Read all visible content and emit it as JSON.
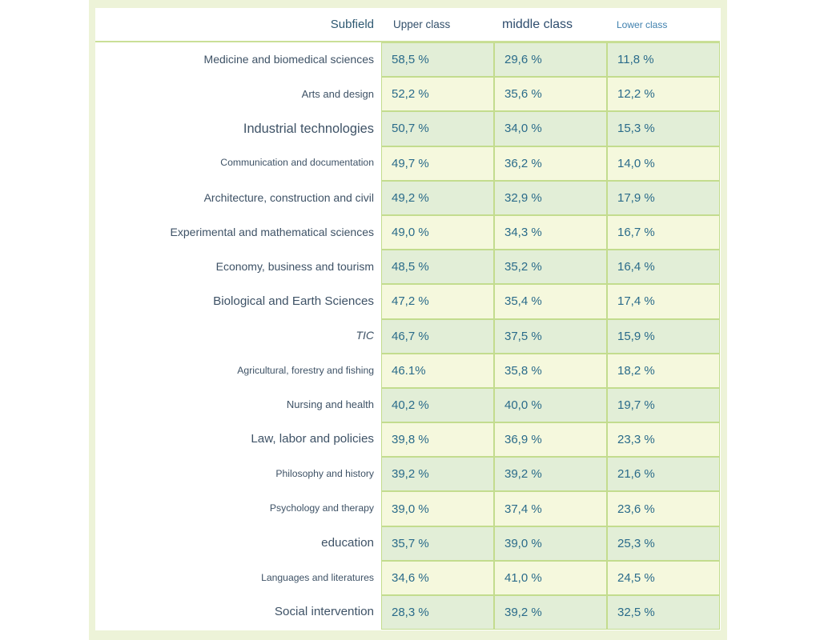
{
  "colors": {
    "band": "#edf3d8",
    "panel": "#ffffff",
    "row_green": "#e2eed7",
    "row_cream": "#f5f8dd",
    "grid_border": "#c3dc8e",
    "header_rule": "#cadf97",
    "label_text": "#3e5266",
    "value_text": "#2a6b8a",
    "header_subfield": "#2d5871",
    "header_upper": "#33506b",
    "header_middle": "#2e4d6e",
    "header_lower": "#3f80ae"
  },
  "chart_data": {
    "type": "table",
    "columns": [
      "Subfield",
      "Upper class",
      "middle class",
      "Lower class"
    ],
    "rows": [
      {
        "subfield": "Medicine and biomedical sciences",
        "upper": "58,5 %",
        "middle": "29,6 %",
        "lower": "11,8 %",
        "size": "md",
        "italic": false
      },
      {
        "subfield": "Arts and design",
        "upper": "52,2 %",
        "middle": "35,6 %",
        "lower": "12,2 %",
        "size": "sm",
        "italic": false
      },
      {
        "subfield": "Industrial technologies",
        "upper": "50,7 %",
        "middle": "34,0 %",
        "lower": "15,3 %",
        "size": "xl",
        "italic": false
      },
      {
        "subfield": "Communication and documentation",
        "upper": "49,7 %",
        "middle": "36,2 %",
        "lower": "14,0 %",
        "size": "xs",
        "italic": false
      },
      {
        "subfield": "Architecture, construction and civil",
        "upper": "49,2 %",
        "middle": "32,9 %",
        "lower": "17,9 %",
        "size": "md",
        "italic": false
      },
      {
        "subfield": "Experimental and mathematical sciences",
        "upper": "49,0 %",
        "middle": "34,3 %",
        "lower": "16,7 %",
        "size": "md",
        "italic": false
      },
      {
        "subfield": "Economy, business and tourism",
        "upper": "48,5 %",
        "middle": "35,2 %",
        "lower": "16,4 %",
        "size": "md",
        "italic": false
      },
      {
        "subfield": "Biological and Earth Sciences",
        "upper": "47,2 %",
        "middle": "35,4 %",
        "lower": "17,4 %",
        "size": "lg",
        "italic": false
      },
      {
        "subfield": "TIC",
        "upper": "46,7 %",
        "middle": "37,5 %",
        "lower": "15,9 %",
        "size": "md",
        "italic": true
      },
      {
        "subfield": "Agricultural, forestry and fishing",
        "upper": "46.1%",
        "middle": "35,8 %",
        "lower": "18,2 %",
        "size": "xs",
        "italic": false
      },
      {
        "subfield": "Nursing and health",
        "upper": "40,2 %",
        "middle": "40,0 %",
        "lower": "19,7 %",
        "size": "sm",
        "italic": false
      },
      {
        "subfield": "Law, labor and policies",
        "upper": "39,8 %",
        "middle": "36,9 %",
        "lower": "23,3 %",
        "size": "lg",
        "italic": false
      },
      {
        "subfield": "Philosophy and history",
        "upper": "39,2 %",
        "middle": "39,2 %",
        "lower": "21,6 %",
        "size": "xs",
        "italic": false
      },
      {
        "subfield": "Psychology and therapy",
        "upper": "39,0 %",
        "middle": "37,4 %",
        "lower": "23,6 %",
        "size": "xs",
        "italic": false
      },
      {
        "subfield": "education",
        "upper": "35,7 %",
        "middle": "39,0 %",
        "lower": "25,3 %",
        "size": "lg",
        "italic": false
      },
      {
        "subfield": "Languages and literatures",
        "upper": "34,6 %",
        "middle": "41,0 %",
        "lower": "24,5 %",
        "size": "xs",
        "italic": false
      },
      {
        "subfield": "Social intervention",
        "upper": "28,3 %",
        "middle": "39,2 %",
        "lower": "32,5 %",
        "size": "lg",
        "italic": false
      }
    ]
  }
}
